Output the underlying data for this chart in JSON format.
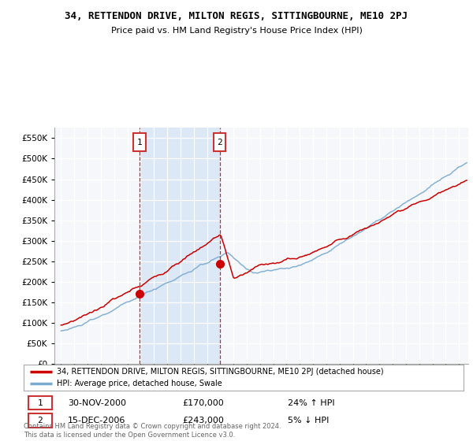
{
  "title": "34, RETTENDON DRIVE, MILTON REGIS, SITTINGBOURNE, ME10 2PJ",
  "subtitle": "Price paid vs. HM Land Registry's House Price Index (HPI)",
  "legend_label_red": "34, RETTENDON DRIVE, MILTON REGIS, SITTINGBOURNE, ME10 2PJ (detached house)",
  "legend_label_blue": "HPI: Average price, detached house, Swale",
  "annotation1_date": "30-NOV-2000",
  "annotation1_price": "£170,000",
  "annotation1_hpi": "24% ↑ HPI",
  "annotation2_date": "15-DEC-2006",
  "annotation2_price": "£243,000",
  "annotation2_hpi": "5% ↓ HPI",
  "footer": "Contains HM Land Registry data © Crown copyright and database right 2024.\nThis data is licensed under the Open Government Licence v3.0.",
  "red_color": "#cc0000",
  "blue_color": "#7aaad0",
  "dashed_red_color": "#cc0000",
  "box_edge_color": "#cc3333",
  "background_color": "#ffffff",
  "plot_bg_color": "#f5f7fa",
  "shade_color": "#dce8f5",
  "ylim": [
    0,
    575000
  ],
  "yticks": [
    0,
    50000,
    100000,
    150000,
    200000,
    250000,
    300000,
    350000,
    400000,
    450000,
    500000,
    550000
  ],
  "xmin": 1994.5,
  "xmax": 2025.7,
  "sale1_year": 2000.92,
  "sale1_price": 170000,
  "sale2_year": 2006.96,
  "sale2_price": 243000
}
